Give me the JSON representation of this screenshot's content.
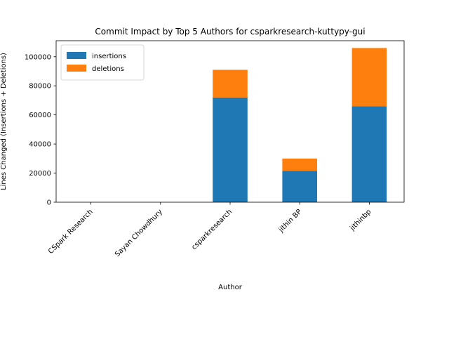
{
  "chart_data": {
    "type": "bar",
    "stacked": true,
    "title": "Commit Impact by Top 5 Authors for csparkresearch-kuttypy-gui",
    "xlabel": "Author",
    "ylabel": "Lines Changed (Insertions + Deletions)",
    "categories": [
      "CSpark Research",
      "Sayan Chowdhury",
      "csparkresearch",
      "jithin BP",
      "jithinbp"
    ],
    "series": [
      {
        "name": "insertions",
        "color": "#1f77b4",
        "values": [
          0,
          0,
          72000,
          21500,
          66000
        ]
      },
      {
        "name": "deletions",
        "color": "#ff7f0e",
        "values": [
          0,
          0,
          19000,
          8500,
          40000
        ]
      }
    ],
    "ylim": [
      0,
      111000
    ],
    "yticks": [
      0,
      20000,
      40000,
      60000,
      80000,
      100000
    ],
    "legend_position": "top-left",
    "grid": false
  }
}
